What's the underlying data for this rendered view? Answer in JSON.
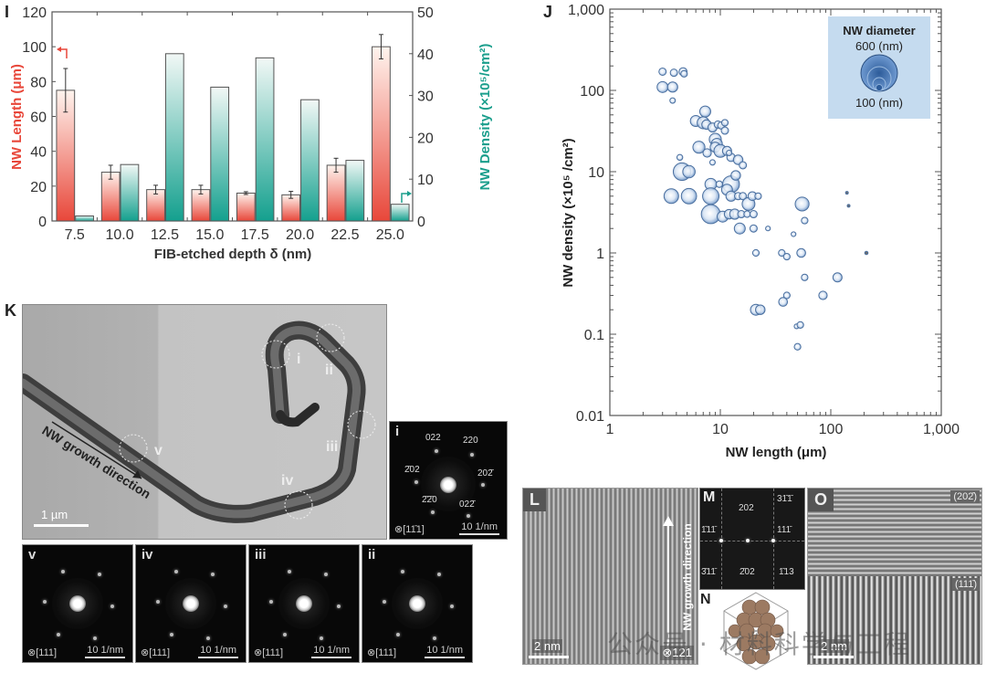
{
  "panels": {
    "I": "I",
    "J": "J",
    "K": "K",
    "L": "L",
    "M": "M",
    "N": "N",
    "O": "O"
  },
  "chart_data": [
    {
      "type": "bar",
      "panel": "I",
      "title": "",
      "xlabel": "FIB-etched depth δ (nm)",
      "ylabel": "NW Length (μm)",
      "y2label": "NW Density (×10⁵/cm²)",
      "categories": [
        "7.5",
        "10.0",
        "12.5",
        "15.0",
        "17.5",
        "20.0",
        "22.5",
        "25.0"
      ],
      "ylim": [
        0,
        120
      ],
      "y2lim": [
        0,
        50
      ],
      "yticks": [
        "0",
        "20",
        "40",
        "60",
        "80",
        "100",
        "120"
      ],
      "y2ticks": [
        "0",
        "10",
        "20",
        "30",
        "40",
        "50"
      ],
      "series": [
        {
          "name": "NW Length",
          "axis": "left",
          "color": "#e8473a",
          "values": [
            75,
            28,
            18,
            18,
            16,
            15,
            32,
            100
          ],
          "errors": [
            12.5,
            4,
            2.5,
            2.5,
            0.8,
            2,
            4,
            7
          ]
        },
        {
          "name": "NW Density",
          "axis": "right",
          "color": "#1a9e8c",
          "values": [
            1.2,
            13.5,
            40,
            32,
            39,
            29,
            14.5,
            4
          ]
        }
      ]
    },
    {
      "type": "scatter",
      "panel": "J",
      "title": "",
      "xlabel": "NW length (μm)",
      "ylabel": "NW density (×10⁵ /cm²)",
      "xscale": "log",
      "yscale": "log",
      "xlim": [
        1,
        1000
      ],
      "ylim": [
        0.01,
        1000
      ],
      "xticks": [
        "1",
        "10",
        "100",
        "1,000"
      ],
      "yticks": [
        "0.01",
        "0.1",
        "1",
        "10",
        "100",
        "1,000"
      ],
      "legend": {
        "title": "NW diameter",
        "max_label": "600 (nm)",
        "min_label": "100 (nm)",
        "placement": "top-right"
      },
      "point_color": "#4a7ab5",
      "points": [
        {
          "x": 3.0,
          "y": 170,
          "d": 200
        },
        {
          "x": 3.8,
          "y": 165,
          "d": 200
        },
        {
          "x": 4.6,
          "y": 170,
          "d": 220
        },
        {
          "x": 4.7,
          "y": 160,
          "d": 180
        },
        {
          "x": 3.0,
          "y": 110,
          "d": 300
        },
        {
          "x": 3.7,
          "y": 110,
          "d": 280
        },
        {
          "x": 3.7,
          "y": 75,
          "d": 150
        },
        {
          "x": 7.3,
          "y": 55,
          "d": 300
        },
        {
          "x": 6.0,
          "y": 42,
          "d": 300
        },
        {
          "x": 7.0,
          "y": 40,
          "d": 330
        },
        {
          "x": 7.5,
          "y": 38,
          "d": 260
        },
        {
          "x": 8.5,
          "y": 35,
          "d": 250
        },
        {
          "x": 9.5,
          "y": 38,
          "d": 200
        },
        {
          "x": 10.2,
          "y": 37,
          "d": 200
        },
        {
          "x": 11.0,
          "y": 40,
          "d": 180
        },
        {
          "x": 11.0,
          "y": 32,
          "d": 200
        },
        {
          "x": 9.0,
          "y": 25,
          "d": 330
        },
        {
          "x": 9.3,
          "y": 22,
          "d": 300
        },
        {
          "x": 9.0,
          "y": 20,
          "d": 280
        },
        {
          "x": 6.4,
          "y": 20,
          "d": 330
        },
        {
          "x": 7.6,
          "y": 17,
          "d": 230
        },
        {
          "x": 8.5,
          "y": 13,
          "d": 150
        },
        {
          "x": 10.0,
          "y": 18,
          "d": 350
        },
        {
          "x": 11.5,
          "y": 18,
          "d": 250
        },
        {
          "x": 12.5,
          "y": 15,
          "d": 230
        },
        {
          "x": 14.5,
          "y": 14,
          "d": 260
        },
        {
          "x": 16.0,
          "y": 12,
          "d": 200
        },
        {
          "x": 12.0,
          "y": 17,
          "d": 150
        },
        {
          "x": 4.3,
          "y": 15,
          "d": 160
        },
        {
          "x": 4.5,
          "y": 10,
          "d": 480
        },
        {
          "x": 5.2,
          "y": 10,
          "d": 340
        },
        {
          "x": 3.6,
          "y": 5,
          "d": 400
        },
        {
          "x": 5.2,
          "y": 5,
          "d": 420
        },
        {
          "x": 8.2,
          "y": 7,
          "d": 320
        },
        {
          "x": 8.2,
          "y": 5,
          "d": 450
        },
        {
          "x": 8.2,
          "y": 3,
          "d": 520
        },
        {
          "x": 9.8,
          "y": 7,
          "d": 180
        },
        {
          "x": 12.5,
          "y": 7,
          "d": 460
        },
        {
          "x": 13.8,
          "y": 9,
          "d": 260
        },
        {
          "x": 11.5,
          "y": 6,
          "d": 300
        },
        {
          "x": 12.5,
          "y": 5,
          "d": 280
        },
        {
          "x": 14.5,
          "y": 5,
          "d": 200
        },
        {
          "x": 16.0,
          "y": 5,
          "d": 200
        },
        {
          "x": 18.0,
          "y": 4,
          "d": 350
        },
        {
          "x": 19.5,
          "y": 5,
          "d": 240
        },
        {
          "x": 22.0,
          "y": 5,
          "d": 180
        },
        {
          "x": 10.5,
          "y": 2.8,
          "d": 300
        },
        {
          "x": 12.0,
          "y": 3,
          "d": 260
        },
        {
          "x": 13.5,
          "y": 3,
          "d": 280
        },
        {
          "x": 15.5,
          "y": 3,
          "d": 200
        },
        {
          "x": 17.5,
          "y": 3,
          "d": 180
        },
        {
          "x": 20.0,
          "y": 3,
          "d": 200
        },
        {
          "x": 15.0,
          "y": 2,
          "d": 300
        },
        {
          "x": 20.0,
          "y": 2,
          "d": 200
        },
        {
          "x": 27.0,
          "y": 2,
          "d": 130
        },
        {
          "x": 46.0,
          "y": 1.7,
          "d": 130
        },
        {
          "x": 55.0,
          "y": 4,
          "d": 380
        },
        {
          "x": 58.0,
          "y": 2.5,
          "d": 180
        },
        {
          "x": 140.0,
          "y": 5.5,
          "d": 40
        },
        {
          "x": 145.0,
          "y": 3.8,
          "d": 40
        },
        {
          "x": 21.0,
          "y": 1.0,
          "d": 180
        },
        {
          "x": 36.0,
          "y": 1.0,
          "d": 180
        },
        {
          "x": 40.0,
          "y": 0.9,
          "d": 180
        },
        {
          "x": 54.0,
          "y": 1.0,
          "d": 240
        },
        {
          "x": 210.0,
          "y": 1.0,
          "d": 90
        },
        {
          "x": 58.0,
          "y": 0.5,
          "d": 180
        },
        {
          "x": 115.0,
          "y": 0.5,
          "d": 250
        },
        {
          "x": 40.0,
          "y": 0.3,
          "d": 180
        },
        {
          "x": 37.0,
          "y": 0.25,
          "d": 240
        },
        {
          "x": 85.0,
          "y": 0.3,
          "d": 230
        },
        {
          "x": 21.0,
          "y": 0.2,
          "d": 300
        },
        {
          "x": 23.0,
          "y": 0.2,
          "d": 260
        },
        {
          "x": 49.0,
          "y": 0.125,
          "d": 130
        },
        {
          "x": 53.0,
          "y": 0.13,
          "d": 180
        },
        {
          "x": 50.0,
          "y": 0.07,
          "d": 180
        }
      ]
    }
  ],
  "panel_K": {
    "region_labels": [
      "i",
      "ii",
      "iii",
      "iv",
      "v"
    ],
    "arrow_label": "NW growth direction",
    "scale_bar": "1 µm"
  },
  "saed": {
    "i": {
      "label": "i",
      "zone": "⊗[11̄1]",
      "scale": "10 1/nm",
      "spots": [
        "022",
        "220",
        "2̄02",
        "202̄",
        "2̄2̄0",
        "022̄"
      ]
    },
    "tiles": [
      {
        "label": "v",
        "zone": "⊗[111]",
        "scale": "10 1/nm"
      },
      {
        "label": "iv",
        "zone": "⊗[111]",
        "scale": "10 1/nm"
      },
      {
        "label": "iii",
        "zone": "⊗[111]",
        "scale": "10 1/nm"
      },
      {
        "label": "ii",
        "zone": "⊗[111]",
        "scale": "10 1/nm"
      }
    ]
  },
  "panel_L": {
    "label": "L",
    "arrow_label": "NW growth direction",
    "scale_bar": "2 nm",
    "zone": "⊗121"
  },
  "panel_M": {
    "label": "M",
    "spots": [
      "202",
      "31̄1̄",
      "1̄11̄",
      "111̄",
      "3̄11̄",
      "2̄02",
      "1̄13"
    ]
  },
  "panel_N": {
    "label": "N"
  },
  "panel_O": {
    "label": "O",
    "top_plane": "(202̄)",
    "bottom_plane": "(111̄)",
    "scale_bar": "2 nm"
  },
  "watermark": "公众号 · 材料科学与工程"
}
